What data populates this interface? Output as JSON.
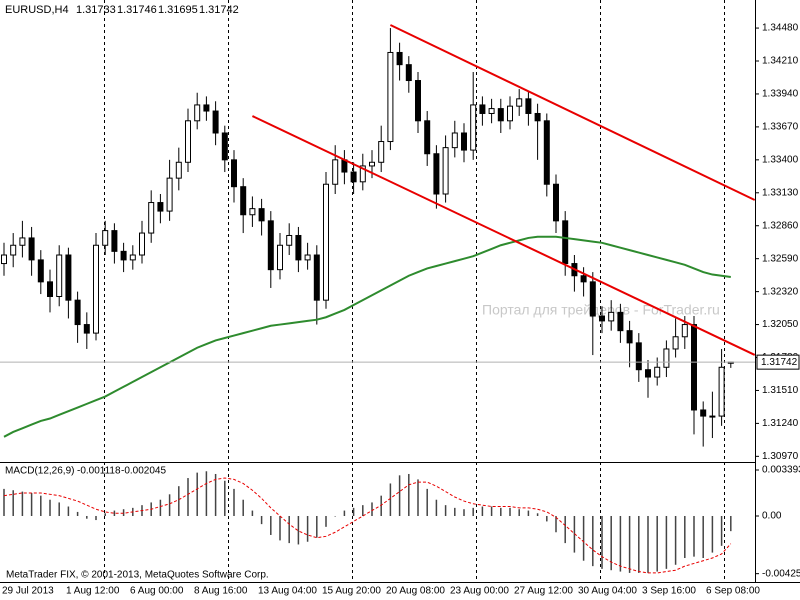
{
  "chart_data": {
    "type": "candlestick",
    "symbol": "EURUSD,H4",
    "open": [
      1.3255,
      1.3262,
      1.327,
      1.3276,
      1.3258,
      1.324,
      1.3228,
      1.3262,
      1.3225,
      1.3205,
      1.3198,
      1.327,
      1.3282,
      1.3265,
      1.3258,
      1.3262,
      1.328,
      1.3305,
      1.3298,
      1.3325,
      1.3338,
      1.3372,
      1.3385,
      1.338,
      1.3362,
      1.334,
      1.3318,
      1.3295,
      1.33,
      1.329,
      1.325,
      1.327,
      1.3278,
      1.3258,
      1.3262,
      1.3225,
      1.332,
      1.334,
      1.333,
      1.3322,
      1.3335,
      1.3338,
      1.3355,
      1.3428,
      1.3418,
      1.3405,
      1.3372,
      1.3345,
      1.3312,
      1.335,
      1.3362,
      1.3348,
      1.3385,
      1.3378,
      1.3382,
      1.3372,
      1.3384,
      1.339,
      1.3378,
      1.3372,
      1.332,
      1.329,
      1.3255,
      1.3245,
      1.324,
      1.3212,
      1.3208,
      1.3215,
      1.32,
      1.319,
      1.3168,
      1.3162,
      1.317,
      1.3185,
      1.3195,
      1.3205,
      1.3135,
      1.313,
      1.313,
      1.31733
    ],
    "high": [
      1.3272,
      1.328,
      1.329,
      1.3285,
      1.3266,
      1.325,
      1.327,
      1.3268,
      1.3232,
      1.3215,
      1.328,
      1.329,
      1.3288,
      1.3272,
      1.327,
      1.329,
      1.3315,
      1.3312,
      1.334,
      1.335,
      1.3382,
      1.3395,
      1.3392,
      1.3388,
      1.3368,
      1.3348,
      1.3325,
      1.331,
      1.3308,
      1.3298,
      1.328,
      1.3288,
      1.3285,
      1.3272,
      1.327,
      1.333,
      1.3352,
      1.3348,
      1.3338,
      1.3345,
      1.3348,
      1.3368,
      1.3448,
      1.3436,
      1.3425,
      1.3412,
      1.338,
      1.3352,
      1.336,
      1.3372,
      1.337,
      1.3412,
      1.3392,
      1.339,
      1.339,
      1.3392,
      1.3398,
      1.3396,
      1.3386,
      1.3378,
      1.3328,
      1.3298,
      1.3262,
      1.3252,
      1.3248,
      1.322,
      1.3225,
      1.3222,
      1.3208,
      1.3198,
      1.3176,
      1.3178,
      1.3192,
      1.321,
      1.3212,
      1.3212,
      1.3142,
      1.315,
      1.3185,
      1.31746
    ],
    "low": [
      1.3245,
      1.3252,
      1.326,
      1.3245,
      1.323,
      1.3215,
      1.322,
      1.321,
      1.319,
      1.3185,
      1.3192,
      1.3262,
      1.3255,
      1.3248,
      1.325,
      1.3255,
      1.3272,
      1.3288,
      1.329,
      1.3315,
      1.333,
      1.3365,
      1.3372,
      1.3352,
      1.333,
      1.3305,
      1.328,
      1.3285,
      1.3278,
      1.3235,
      1.3242,
      1.3262,
      1.3248,
      1.325,
      1.3205,
      1.3218,
      1.3312,
      1.332,
      1.3312,
      1.3315,
      1.3325,
      1.333,
      1.3348,
      1.3405,
      1.3395,
      1.3362,
      1.3335,
      1.33,
      1.3305,
      1.3342,
      1.3338,
      1.334,
      1.3368,
      1.337,
      1.3362,
      1.3365,
      1.3376,
      1.3368,
      1.334,
      1.331,
      1.328,
      1.3245,
      1.3232,
      1.3228,
      1.318,
      1.3198,
      1.32,
      1.319,
      1.317,
      1.3158,
      1.3145,
      1.3155,
      1.3162,
      1.3178,
      1.3185,
      1.3115,
      1.3105,
      1.3112,
      1.3122,
      1.31695
    ],
    "close": [
      1.3262,
      1.327,
      1.3276,
      1.3258,
      1.324,
      1.3228,
      1.3262,
      1.3225,
      1.3205,
      1.3198,
      1.327,
      1.3282,
      1.3265,
      1.3258,
      1.3262,
      1.328,
      1.3305,
      1.3298,
      1.3325,
      1.3338,
      1.3372,
      1.3385,
      1.338,
      1.3362,
      1.334,
      1.3318,
      1.3295,
      1.33,
      1.329,
      1.325,
      1.327,
      1.3278,
      1.3258,
      1.3262,
      1.3225,
      1.332,
      1.334,
      1.333,
      1.3322,
      1.3335,
      1.3338,
      1.3355,
      1.3428,
      1.3418,
      1.3405,
      1.3372,
      1.3345,
      1.3312,
      1.335,
      1.3362,
      1.3348,
      1.3385,
      1.3378,
      1.3382,
      1.3372,
      1.3384,
      1.339,
      1.3378,
      1.3372,
      1.332,
      1.329,
      1.3255,
      1.3245,
      1.324,
      1.3212,
      1.3208,
      1.3215,
      1.32,
      1.319,
      1.3168,
      1.3162,
      1.317,
      1.3185,
      1.3195,
      1.3205,
      1.3135,
      1.313,
      1.313,
      1.317,
      1.31742
    ],
    "ma": {
      "color": "#2e8b2e",
      "values": [
        1.3113,
        1.3117,
        1.312,
        1.3123,
        1.3126,
        1.3128,
        1.3131,
        1.3134,
        1.3137,
        1.314,
        1.3143,
        1.3146,
        1.315,
        1.3154,
        1.3158,
        1.3162,
        1.3166,
        1.317,
        1.3174,
        1.3178,
        1.3182,
        1.3186,
        1.3189,
        1.3192,
        1.3194,
        1.3196,
        1.3198,
        1.32,
        1.3202,
        1.3204,
        1.3205,
        1.3206,
        1.3207,
        1.3208,
        1.3209,
        1.3211,
        1.3214,
        1.3217,
        1.3221,
        1.3225,
        1.3229,
        1.3233,
        1.3237,
        1.3241,
        1.3245,
        1.3248,
        1.3251,
        1.3253,
        1.3255,
        1.3257,
        1.3259,
        1.3261,
        1.3264,
        1.3267,
        1.327,
        1.3272,
        1.3274,
        1.3276,
        1.3277,
        1.3277,
        1.3277,
        1.3276,
        1.3275,
        1.3274,
        1.3273,
        1.3272,
        1.327,
        1.3268,
        1.3266,
        1.3264,
        1.3262,
        1.326,
        1.3258,
        1.3256,
        1.3254,
        1.3251,
        1.3248,
        1.3246,
        1.3245,
        1.3244
      ]
    },
    "trendlines": [
      {
        "color": "#e80000",
        "start": [
          27,
          1.33759
        ],
        "end": [
          81.6,
          1.31801
        ]
      },
      {
        "color": "#e80000",
        "start": [
          42,
          1.34505
        ],
        "end": [
          81.6,
          1.33071
        ]
      }
    ],
    "ylim": [
      1.3094,
      1.3471
    ],
    "yticks": [
      {
        "value": 1.3448,
        "label": "1.34480"
      },
      {
        "value": 1.3421,
        "label": "1.34210"
      },
      {
        "value": 1.3394,
        "label": "1.33940"
      },
      {
        "value": 1.3367,
        "label": "1.33670"
      },
      {
        "value": 1.334,
        "label": "1.33400"
      },
      {
        "value": 1.3313,
        "label": "1.33130"
      },
      {
        "value": 1.3286,
        "label": "1.32860"
      },
      {
        "value": 1.3259,
        "label": "1.32590"
      },
      {
        "value": 1.3232,
        "label": "1.32320"
      },
      {
        "value": 1.3205,
        "label": "1.32050"
      },
      {
        "value": 1.3178,
        "label": "1.31780"
      },
      {
        "value": 1.3151,
        "label": "1.31510"
      },
      {
        "value": 1.3124,
        "label": "1.31240"
      },
      {
        "value": 1.3097,
        "label": "1.30970"
      }
    ],
    "x_labels": [
      "29 Jul 2013",
      "1 Aug 12:00",
      "6 Aug 00:00",
      "8 Aug 16:00",
      "13 Aug 04:00",
      "15 Aug 20:00",
      "20 Aug 08:00",
      "23 Aug 00:00",
      "27 Aug 12:00",
      "30 Aug 04:00",
      "3 Sep 16:00",
      "6 Sep 08:00"
    ],
    "macd": {
      "label": "MACD(12,26,9)",
      "histogram_color": "#444444",
      "signal_color": "#e80000",
      "histogram": [
        0.002,
        0.0019,
        0.0018,
        0.0017,
        0.0015,
        0.0012,
        0.001,
        0.0007,
        0.0003,
        -0.0002,
        -0.0003,
        0.0002,
        0.0004,
        0.0005,
        0.0006,
        0.0008,
        0.001,
        0.0012,
        0.0016,
        0.0022,
        0.0028,
        0.0032,
        0.0033,
        0.0031,
        0.0026,
        0.002,
        0.0012,
        0.0004,
        -0.0006,
        -0.0014,
        -0.0018,
        -0.002,
        -0.0021,
        -0.0019,
        -0.0016,
        -0.0008,
        0.0,
        0.0004,
        0.0006,
        0.0008,
        0.001,
        0.0015,
        0.0024,
        0.003,
        0.0031,
        0.0027,
        0.002,
        0.0012,
        0.0008,
        0.0006,
        0.0005,
        0.0006,
        0.0007,
        0.0007,
        0.0006,
        0.0006,
        0.0005,
        0.0004,
        0.0002,
        -0.0004,
        -0.0012,
        -0.002,
        -0.0027,
        -0.0033,
        -0.0037,
        -0.0039,
        -0.004,
        -0.0041,
        -0.0042,
        -0.0042,
        -0.0042,
        -0.0041,
        -0.0039,
        -0.0036,
        -0.0031,
        -0.003,
        -0.0031,
        -0.0027,
        -0.0022,
        -0.001118
      ],
      "signal": [
        0.0015,
        0.0016,
        0.0017,
        0.0017,
        0.0017,
        0.0016,
        0.0015,
        0.0013,
        0.0011,
        0.0008,
        0.0005,
        0.0003,
        0.0002,
        0.0002,
        0.0003,
        0.0004,
        0.0005,
        0.0007,
        0.0009,
        0.0012,
        0.0016,
        0.002,
        0.0024,
        0.0027,
        0.0028,
        0.0027,
        0.0024,
        0.0019,
        0.0013,
        0.0006,
        0.0,
        -0.0006,
        -0.0011,
        -0.0014,
        -0.0016,
        -0.0015,
        -0.0012,
        -0.0008,
        -0.0004,
        0.0,
        0.0004,
        0.0008,
        0.0013,
        0.0018,
        0.0023,
        0.0025,
        0.0025,
        0.0022,
        0.0018,
        0.0014,
        0.0011,
        0.0009,
        0.0008,
        0.0007,
        0.0007,
        0.0007,
        0.0006,
        0.0006,
        0.0005,
        0.0003,
        -0.0001,
        -0.0007,
        -0.0013,
        -0.0019,
        -0.0025,
        -0.003,
        -0.0034,
        -0.0037,
        -0.0039,
        -0.0041,
        -0.0042,
        -0.0042,
        -0.0041,
        -0.004,
        -0.0037,
        -0.0035,
        -0.0033,
        -0.0031,
        -0.0028,
        -0.002045
      ],
      "ylim": [
        -0.00487,
        0.00391
      ],
      "yticks": [
        0.003393,
        {
          "value": 0,
          "label": "0.00"
        },
        -0.004255
      ]
    },
    "watermark": "Портал для трейдеров - ForTrader.ru",
    "copyright": "MetaTrader FIX, © 2001-2013, MetaQuotes Software Corp."
  }
}
